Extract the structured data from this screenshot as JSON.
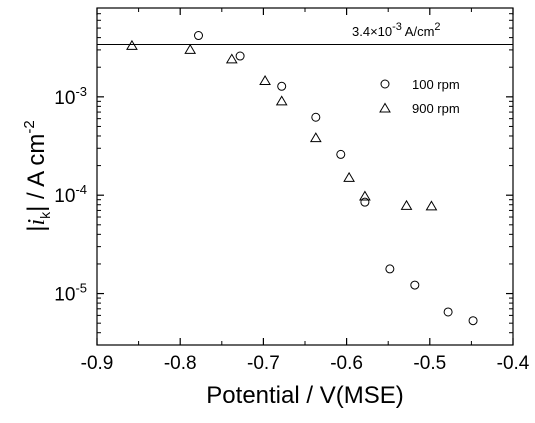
{
  "chart_data": {
    "type": "scatter",
    "x_axis": {
      "label": "Potential / V(MSE)",
      "range": [
        -0.9,
        -0.4
      ],
      "ticks": [
        -0.9,
        -0.8,
        -0.7,
        -0.6,
        -0.5,
        -0.4
      ],
      "tick_labels": [
        "-0.9",
        "-0.8",
        "-0.7",
        "-0.6",
        "-0.5",
        "-0.4"
      ]
    },
    "y_axis": {
      "label": "|i_k| / A cm^-2",
      "label_text": "A cm",
      "label_exponent": "-2",
      "scale": "log",
      "range": [
        3e-06,
        0.008
      ],
      "ticks": [
        1e-05,
        0.0001,
        0.001
      ],
      "tick_labels": [
        {
          "base": "10",
          "exp": "-5"
        },
        {
          "base": "10",
          "exp": "-4"
        },
        {
          "base": "10",
          "exp": "-3"
        }
      ]
    },
    "grid": false,
    "legend_position": "right, upper-middle",
    "series": [
      {
        "name": "100 rpm",
        "marker": "circle",
        "points": [
          [
            -0.778,
            0.0042
          ],
          [
            -0.728,
            0.0026
          ],
          [
            -0.678,
            0.00128
          ],
          [
            -0.637,
            0.00062
          ],
          [
            -0.607,
            0.00026
          ],
          [
            -0.578,
            8.5e-05
          ],
          [
            -0.548,
            1.78e-05
          ],
          [
            -0.518,
            1.22e-05
          ],
          [
            -0.478,
            6.5e-06
          ],
          [
            -0.448,
            5.3e-06
          ]
        ]
      },
      {
        "name": "900 rpm",
        "marker": "triangle",
        "points": [
          [
            -0.858,
            0.0033
          ],
          [
            -0.788,
            0.003
          ],
          [
            -0.738,
            0.0024
          ],
          [
            -0.698,
            0.00145
          ],
          [
            -0.678,
            0.0009
          ],
          [
            -0.637,
            0.00038
          ],
          [
            -0.597,
            0.00015
          ],
          [
            -0.578,
            9.7e-05
          ],
          [
            -0.528,
            7.8e-05
          ],
          [
            -0.498,
            7.7e-05
          ]
        ]
      }
    ],
    "reference_line": {
      "y": 0.0034,
      "label_prefix": "3.4×10",
      "label_exp": "-3",
      "label_suffix": " A/cm",
      "label_unit_exp": "2"
    }
  }
}
